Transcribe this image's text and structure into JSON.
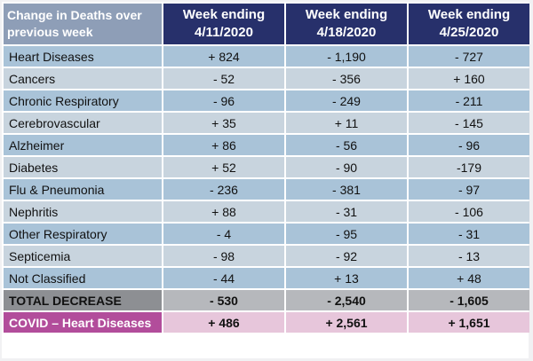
{
  "header": {
    "first": "Change in Deaths over previous week",
    "weeks": [
      "Week ending 4/11/2020",
      "Week ending 4/18/2020",
      "Week ending 4/25/2020"
    ]
  },
  "rows": [
    {
      "name": "Heart Diseases",
      "values": [
        "+ 824",
        "- 1,190",
        "- 727"
      ]
    },
    {
      "name": "Cancers",
      "values": [
        "- 52",
        "- 356",
        "+ 160"
      ]
    },
    {
      "name": "Chronic Respiratory",
      "values": [
        "- 96",
        "- 249",
        "- 211"
      ]
    },
    {
      "name": "Cerebrovascular",
      "values": [
        "+ 35",
        "+ 11",
        "- 145"
      ]
    },
    {
      "name": "Alzheimer",
      "values": [
        "+ 86",
        "- 56",
        "- 96"
      ]
    },
    {
      "name": "Diabetes",
      "values": [
        "+ 52",
        "- 90",
        "-179"
      ]
    },
    {
      "name": "Flu & Pneumonia",
      "values": [
        "- 236",
        "- 381",
        "- 97"
      ]
    },
    {
      "name": "Nephritis",
      "values": [
        "+ 88",
        "- 31",
        "- 106"
      ]
    },
    {
      "name": "Other Respiratory",
      "values": [
        "- 4",
        "- 95",
        "- 31"
      ]
    },
    {
      "name": "Septicemia",
      "values": [
        "- 98",
        "- 92",
        "- 13"
      ]
    },
    {
      "name": "Not Classified",
      "values": [
        "- 44",
        "+ 13",
        "+ 48"
      ]
    }
  ],
  "total": {
    "name": "TOTAL DECREASE",
    "values": [
      "- 530",
      "- 2,540",
      "- 1,605"
    ]
  },
  "covid": {
    "name": "COVID – Heart Diseases",
    "values": [
      "+ 486",
      "+ 2,561",
      "+ 1,651"
    ]
  },
  "colors": {
    "header_bg": "#27306b",
    "row_blue": "#a9c3d8",
    "row_gray_blue": "#c8d4de",
    "total_bg": "#8d8f93",
    "covid_label_bg": "#b24d9b",
    "covid_row_bg": "#e7c6db"
  }
}
